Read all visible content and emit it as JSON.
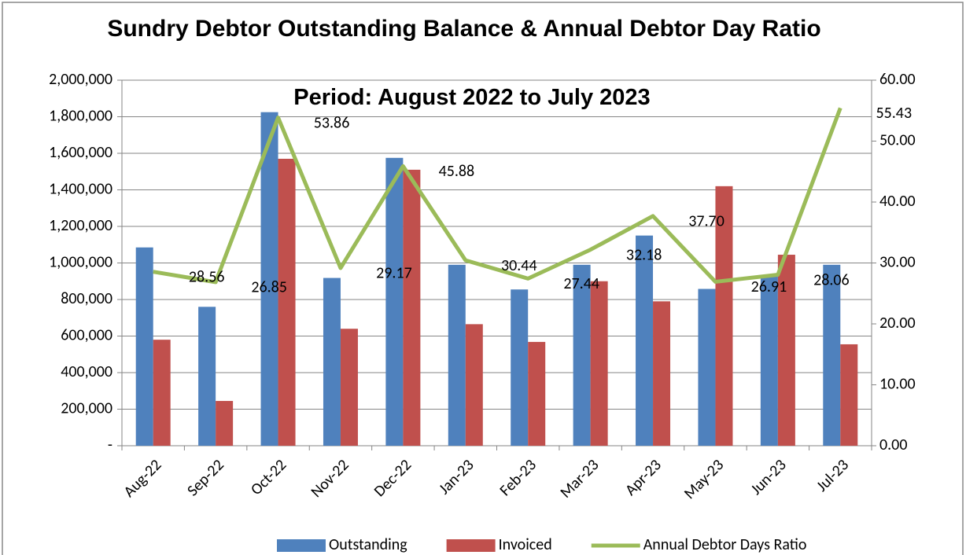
{
  "chart_data": {
    "type": "bar-line",
    "title": "Sundry Debtor Outstanding Balance & Annual Debtor Day Ratio",
    "subtitle": "Period: August 2022 to July 2023",
    "categories": [
      "Aug-22",
      "Sep-22",
      "Oct-22",
      "Nov-22",
      "Dec-22",
      "Jan-23",
      "Feb-23",
      "Mar-23",
      "Apr-23",
      "May-23",
      "Jun-23",
      "Jul-23"
    ],
    "series": [
      {
        "name": "Outstanding",
        "type": "bar",
        "color": "#4f81bd",
        "values": [
          1085000,
          760000,
          1825000,
          918000,
          1575000,
          990000,
          855000,
          990000,
          1150000,
          858000,
          930000,
          990000
        ]
      },
      {
        "name": "Invoiced",
        "type": "bar",
        "color": "#c0504d",
        "values": [
          580000,
          245000,
          1570000,
          640000,
          1510000,
          665000,
          568000,
          900000,
          790000,
          1420000,
          1045000,
          555000
        ]
      },
      {
        "name": "Annual Debtor Days Ratio",
        "type": "line",
        "axis": "y2",
        "color": "#9bbb59",
        "values": [
          28.56,
          26.85,
          53.86,
          29.17,
          45.88,
          30.44,
          27.44,
          32.18,
          37.7,
          26.91,
          28.06,
          55.43
        ],
        "value_labels": [
          "28.56",
          "26.85",
          "53.86",
          "29.17",
          "45.88",
          "30.44",
          "27.44",
          "32.18",
          "37.70",
          "26.91",
          "28.06",
          "55.43"
        ]
      }
    ],
    "ylim": [
      0,
      2000000
    ],
    "yticks": [
      {
        "value": 0,
        "label": "-"
      },
      {
        "value": 200000,
        "label": "200,000"
      },
      {
        "value": 400000,
        "label": "400,000"
      },
      {
        "value": 600000,
        "label": "600,000"
      },
      {
        "value": 800000,
        "label": "800,000"
      },
      {
        "value": 1000000,
        "label": "1,000,000"
      },
      {
        "value": 1200000,
        "label": "1,200,000"
      },
      {
        "value": 1400000,
        "label": "1,400,000"
      },
      {
        "value": 1600000,
        "label": "1,600,000"
      },
      {
        "value": 1800000,
        "label": "1,800,000"
      },
      {
        "value": 2000000,
        "label": "2,000,000"
      }
    ],
    "y2lim": [
      0,
      60
    ],
    "y2ticks": [
      {
        "value": 0,
        "label": "0.00"
      },
      {
        "value": 10,
        "label": "10.00"
      },
      {
        "value": 20,
        "label": "20.00"
      },
      {
        "value": 30,
        "label": "30.00"
      },
      {
        "value": 40,
        "label": "40.00"
      },
      {
        "value": 50,
        "label": "50.00"
      },
      {
        "value": 60,
        "label": "60.00"
      }
    ],
    "grid": true,
    "legend": "bottom"
  }
}
